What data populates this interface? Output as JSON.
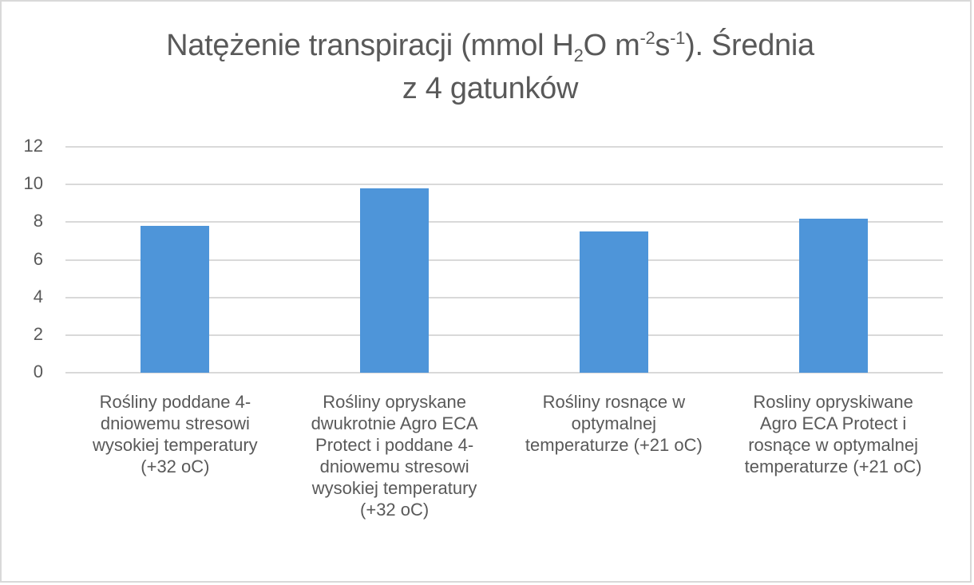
{
  "chart_data": {
    "type": "bar",
    "title": "Natężenie transpiracji (mmol H2O m-2s-1). Średnia z 4 gatunków",
    "title_parts": {
      "line1_a": "Natężenie transpiracji (mmol H",
      "sub_2": "2",
      "line1_b": "O m",
      "sup_neg2": "-2",
      "line1_c": "s",
      "sup_neg1": "-1",
      "line1_d": "). Średnia",
      "line2": "z 4 gatunków"
    },
    "categories": [
      "Rośliny poddane 4-dniowemu stresowi wysokiej temperatury (+32 oC)",
      "Rośliny opryskane dwukrotnie Agro ECA Protect i poddane 4-dniowemu stresowi wysokiej temperatury (+32 oC)",
      "Rośliny rosnące w optymalnej temperaturze (+21 oC)",
      "Rosliny opryskiwane Agro ECA Protect  i rosnące w optymalnej temperaturze (+21 oC)"
    ],
    "category_labels_wrapped": [
      "Rośliny poddane 4-\ndniowemu stresowi\nwysokiej temperatury\n(+32 oC)",
      "Rośliny opryskane\ndwukrotnie Agro ECA\nProtect i poddane 4-\ndniowemu stresowi\nwysokiej temperatury\n(+32 oC)",
      "Rośliny rosnące w\noptymalnej\ntemperaturze (+21 oC)",
      "Rosliny opryskiwane\nAgro ECA Protect  i\nrosnące w optymalnej\ntemperaturze (+21 oC)"
    ],
    "values": [
      7.8,
      9.8,
      7.5,
      8.2
    ],
    "xlabel": "",
    "ylabel": "",
    "ylim": [
      0,
      12
    ],
    "yticks": [
      "0",
      "2",
      "4",
      "6",
      "8",
      "10",
      "12"
    ],
    "grid": true,
    "legend": null,
    "bar_color": "#4e95d9"
  }
}
